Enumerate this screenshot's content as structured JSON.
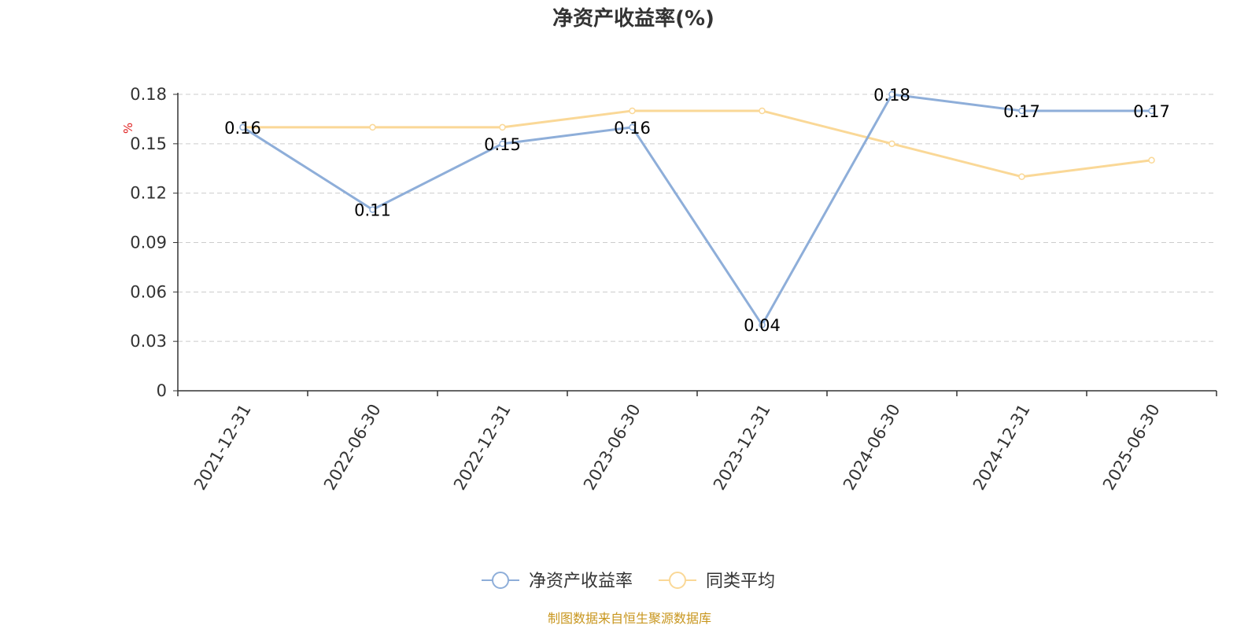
{
  "chart_data": {
    "type": "line",
    "title": "净资产收益率(%)",
    "ylabel": "%",
    "xlabel": "",
    "categories": [
      "2021-12-31",
      "2022-06-30",
      "2022-12-31",
      "2023-06-30",
      "2023-12-31",
      "2024-06-30",
      "2024-12-31",
      "2025-06-30"
    ],
    "ylim": [
      0,
      0.18
    ],
    "yticks": [
      "0",
      "0.03",
      "0.06",
      "0.09",
      "0.12",
      "0.15",
      "0.18"
    ],
    "grid": true,
    "legend_position": "bottom-center",
    "series": [
      {
        "name": "净资产收益率",
        "color": "#8eaed9",
        "values": [
          0.16,
          0.11,
          0.15,
          0.16,
          0.04,
          0.18,
          0.17,
          0.17
        ],
        "labels": [
          "0.16",
          "0.11",
          "0.15",
          "0.16",
          "0.04",
          "0.18",
          "0.17",
          "0.17"
        ]
      },
      {
        "name": "同类平均",
        "color": "#fad897",
        "values": [
          0.16,
          0.16,
          0.16,
          0.17,
          0.17,
          0.15,
          0.13,
          0.14
        ]
      }
    ]
  },
  "footer": {
    "source": "制图数据来自恒生聚源数据库"
  }
}
